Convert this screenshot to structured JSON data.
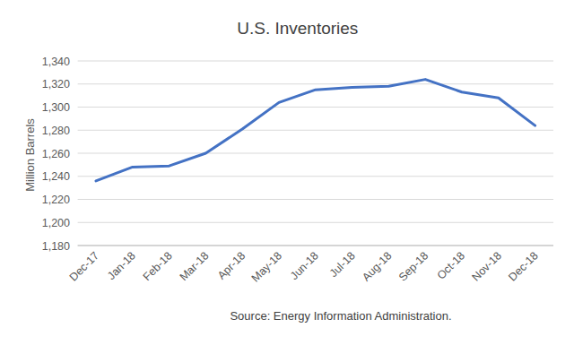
{
  "chart_data": {
    "type": "line",
    "title": "U.S. Inventories",
    "y_label": "Million Barrels",
    "annotations": [
      "Source: Energy Information Administration."
    ],
    "categories": [
      "Dec-17",
      "Jan-18",
      "Feb-18",
      "Mar-18",
      "Apr-18",
      "May-18",
      "Jun-18",
      "Jul-18",
      "Aug-18",
      "Sep-18",
      "Oct-18",
      "Nov-18",
      "Dec-18"
    ],
    "values": [
      1236,
      1248,
      1249,
      1260,
      1281,
      1304,
      1315,
      1317,
      1318,
      1324,
      1313,
      1308,
      1284
    ],
    "color": "#4472c4",
    "ylim": [
      1180,
      1340
    ],
    "yticks": [
      {
        "value": 1180,
        "label": "1,180"
      },
      {
        "value": 1200,
        "label": "1,200"
      },
      {
        "value": 1220,
        "label": "1,220"
      },
      {
        "value": 1240,
        "label": "1,240"
      },
      {
        "value": 1260,
        "label": "1,260"
      },
      {
        "value": 1280,
        "label": "1,280"
      },
      {
        "value": 1300,
        "label": "1,300"
      },
      {
        "value": 1320,
        "label": "1,320"
      },
      {
        "value": 1340,
        "label": "1,340"
      }
    ],
    "grid": true
  }
}
